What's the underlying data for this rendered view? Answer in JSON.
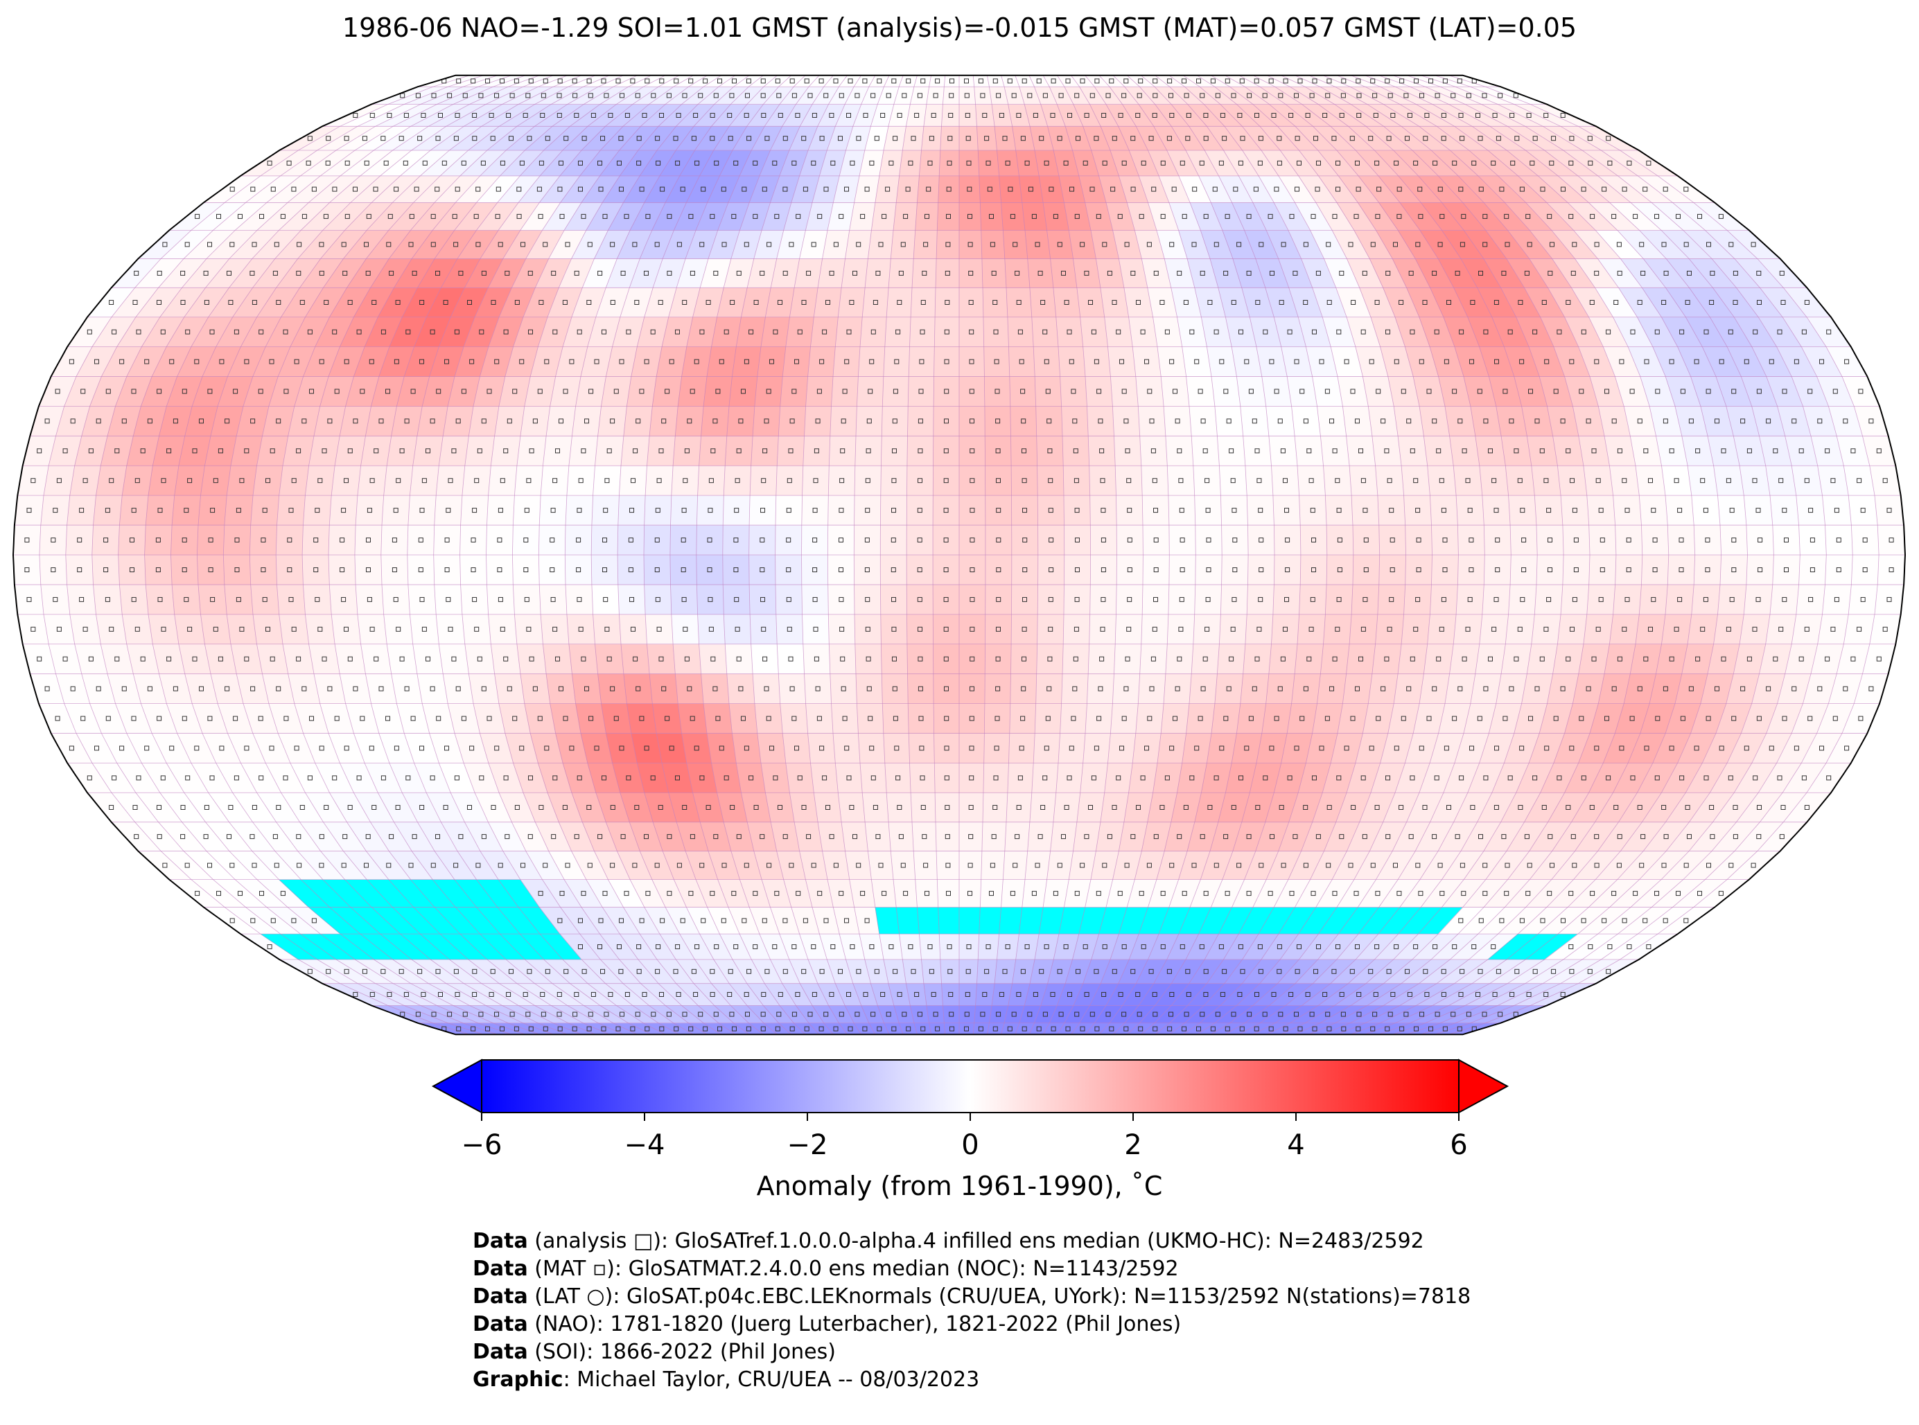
{
  "title": "1986-06 NAO=-1.29 SOI=1.01 GMST (analysis)=-0.015 GMST (MAT)=0.057 GMST (LAT)=0.05",
  "colorbar": {
    "label": "Anomaly (from 1961-1990), ˚C",
    "ticks": [
      "−6",
      "−4",
      "−2",
      "0",
      "2",
      "4",
      "6"
    ],
    "min": -6,
    "max": 6,
    "colors": {
      "low": "#0000ff",
      "mid": "#ffffff",
      "high": "#ff0000",
      "missing": "#00ffff"
    }
  },
  "credits": [
    {
      "bold": "Data",
      "text": " (analysis □): GloSATref.1.0.0.0-alpha.4 infilled ens median (UKMO-HC): N=2483/2592"
    },
    {
      "bold": "Data",
      "text": " (MAT ▫): GloSATMAT.2.4.0.0 ens median (NOC): N=1143/2592"
    },
    {
      "bold": "Data",
      "text": " (LAT ○): GloSAT.p04c.EBC.LEKnormals (CRU/UEA, UYork): N=1153/2592 N(stations)=7818"
    },
    {
      "bold": "Data",
      "text": " (NAO): 1781-1820 (Juerg Luterbacher), 1821-2022 (Phil Jones)"
    },
    {
      "bold": "Data",
      "text": " (SOI): 1866-2022 (Phil Jones)"
    },
    {
      "bold": "Graphic",
      "text": ": Michael Taylor, CRU/UEA -- 08/03/2023"
    }
  ],
  "map": {
    "projection": "Robinson",
    "grid_resolution_deg": 5,
    "anomaly_regions": [
      {
        "name": "western North America",
        "lon": -105,
        "lat": 42,
        "value": 3.5
      },
      {
        "name": "eastern Canada",
        "lon": -75,
        "lat": 60,
        "value": -2.5
      },
      {
        "name": "Greenland",
        "lon": -45,
        "lat": 72,
        "value": -1.0
      },
      {
        "name": "subtropical North Atlantic",
        "lon": -45,
        "lat": 30,
        "value": 2.5
      },
      {
        "name": "Scandinavia",
        "lon": 22,
        "lat": 65,
        "value": 3.5
      },
      {
        "name": "western Siberia",
        "lon": 68,
        "lat": 60,
        "value": -2.5
      },
      {
        "name": "eastern Siberia",
        "lon": 112,
        "lat": 58,
        "value": 3.0
      },
      {
        "name": "China",
        "lon": 110,
        "lat": 32,
        "value": 1.8
      },
      {
        "name": "northwest Pacific",
        "lon": 150,
        "lat": 40,
        "value": -1.5
      },
      {
        "name": "northeast Pacific",
        "lon": -150,
        "lat": 25,
        "value": 2.0
      },
      {
        "name": "equatorial central Pacific",
        "lon": -140,
        "lat": 0,
        "value": 1.2
      },
      {
        "name": "Sahara",
        "lon": 10,
        "lat": 20,
        "value": 1.5
      },
      {
        "name": "subtropical South Atlantic",
        "lon": 0,
        "lat": -20,
        "value": 1.5
      },
      {
        "name": "Argentina",
        "lon": -60,
        "lat": -32,
        "value": 3.5
      },
      {
        "name": "Brazil",
        "lon": -50,
        "lat": -5,
        "value": -1.5
      },
      {
        "name": "Australia",
        "lon": 135,
        "lat": -28,
        "value": 2.0
      },
      {
        "name": "southern Indian Ocean",
        "lon": 60,
        "lat": -40,
        "value": 2.0
      },
      {
        "name": "Indian Ocean",
        "lon": 80,
        "lat": -10,
        "value": 1.0
      },
      {
        "name": "Antarctica",
        "lon": 60,
        "lat": -80,
        "value": -3.0
      },
      {
        "name": "Southern Ocean",
        "lon": -100,
        "lat": -62,
        "value": -0.8
      }
    ],
    "missing_data_regions": [
      {
        "lon_min": -155,
        "lon_max": -100,
        "lat_min": -70,
        "lat_max": -55
      },
      {
        "lon_min": -175,
        "lon_max": -140,
        "lat_min": -70,
        "lat_max": -65
      },
      {
        "lon_min": -20,
        "lon_max": 120,
        "lat_min": -65,
        "lat_max": -60
      },
      {
        "lon_min": 140,
        "lon_max": 155,
        "lat_min": -70,
        "lat_max": -65
      }
    ]
  }
}
